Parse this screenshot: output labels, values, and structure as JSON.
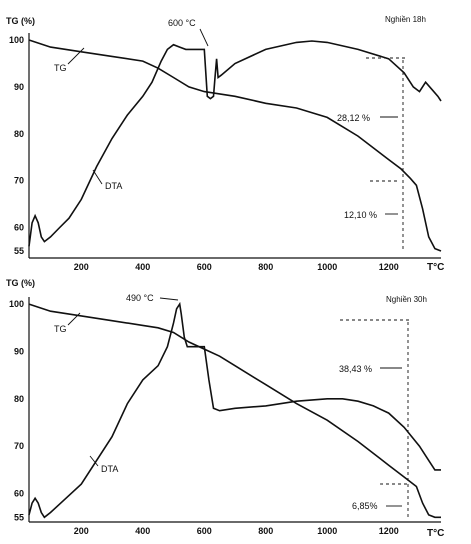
{
  "chart_data": [
    {
      "type": "line",
      "ylabel": "TG (%)",
      "xunit": "T°C",
      "mode_label": "Nghiền 18h",
      "x_ticks": [
        "200",
        "400",
        "600",
        "800",
        "1000",
        "1200"
      ],
      "y_ticks": [
        "100",
        "90",
        "80",
        "70",
        "60",
        "55"
      ],
      "xlim": [
        30,
        1370
      ],
      "ylim": [
        53.5,
        101.5
      ],
      "annotations": {
        "peak_label": "600 °C",
        "loss_total": "28,12 %",
        "loss_step": "12,10 %"
      },
      "series": [
        {
          "name": "TG",
          "x": [
            30,
            100,
            200,
            300,
            400,
            450,
            500,
            550,
            600,
            650,
            700,
            800,
            900,
            1000,
            1100,
            1200,
            1240,
            1270,
            1290,
            1310,
            1330,
            1350,
            1370
          ],
          "y": [
            100,
            98.5,
            97.5,
            96.5,
            95.5,
            94,
            92,
            90,
            89,
            88.5,
            88,
            86.5,
            85.5,
            83.5,
            79.5,
            74.5,
            72.5,
            70.5,
            69,
            64,
            58,
            55.5,
            55
          ]
        },
        {
          "name": "DTA",
          "x": [
            30,
            40,
            50,
            60,
            70,
            80,
            100,
            130,
            160,
            200,
            250,
            300,
            350,
            400,
            430,
            460,
            480,
            500,
            520,
            540,
            560,
            580,
            600,
            605,
            610,
            620,
            630,
            635,
            640,
            645,
            655,
            700,
            800,
            900,
            950,
            1000,
            1100,
            1200,
            1250,
            1280,
            1300,
            1320,
            1340,
            1360,
            1370
          ],
          "y": [
            56,
            61,
            62.5,
            61,
            58,
            57,
            58,
            60,
            62,
            66,
            73,
            79,
            84,
            88,
            91,
            95.5,
            98,
            99,
            98.5,
            98,
            98,
            98,
            98,
            93,
            88,
            87.5,
            88,
            92,
            96,
            92,
            92.5,
            95,
            98,
            99.5,
            99.8,
            99.5,
            98,
            96,
            93,
            90,
            89,
            91,
            89.5,
            88,
            87
          ]
        }
      ]
    },
    {
      "type": "line",
      "ylabel": "TG (%)",
      "xunit": "T°C",
      "mode_label": "Nghiền 30h",
      "x_ticks": [
        "200",
        "400",
        "600",
        "800",
        "1000",
        "1200"
      ],
      "y_ticks": [
        "100",
        "90",
        "80",
        "70",
        "60",
        "55"
      ],
      "xlim": [
        30,
        1370
      ],
      "ylim": [
        54,
        101.5
      ],
      "annotations": {
        "peak_label": "490 °C",
        "loss_total": "38,43 %",
        "loss_step": "6,85%"
      },
      "series": [
        {
          "name": "TG",
          "x": [
            30,
            100,
            200,
            300,
            400,
            450,
            500,
            550,
            600,
            650,
            700,
            800,
            900,
            1000,
            1100,
            1200,
            1250,
            1290,
            1310,
            1330,
            1350,
            1370
          ],
          "y": [
            100,
            98.5,
            97.5,
            96.5,
            95.5,
            95,
            94,
            92,
            90.5,
            89,
            87,
            83,
            79,
            75.5,
            71,
            66,
            63.5,
            61.5,
            58,
            55.5,
            55,
            55
          ]
        },
        {
          "name": "DTA",
          "x": [
            30,
            40,
            50,
            60,
            70,
            80,
            100,
            150,
            200,
            300,
            350,
            400,
            450,
            480,
            500,
            510,
            520,
            525,
            535,
            545,
            560,
            580,
            600,
            615,
            630,
            650,
            700,
            800,
            900,
            1000,
            1050,
            1100,
            1150,
            1200,
            1250,
            1300,
            1330,
            1350,
            1360,
            1370
          ],
          "y": [
            55.5,
            58,
            59,
            58,
            56,
            55,
            56,
            59,
            62,
            72,
            79,
            84,
            87,
            91,
            96,
            99,
            100,
            98,
            93,
            91,
            91,
            91,
            91,
            84,
            78,
            77.5,
            78,
            78.5,
            79.5,
            80,
            80,
            79.5,
            78.5,
            77,
            74,
            70,
            67,
            65,
            65,
            65
          ]
        }
      ]
    }
  ]
}
